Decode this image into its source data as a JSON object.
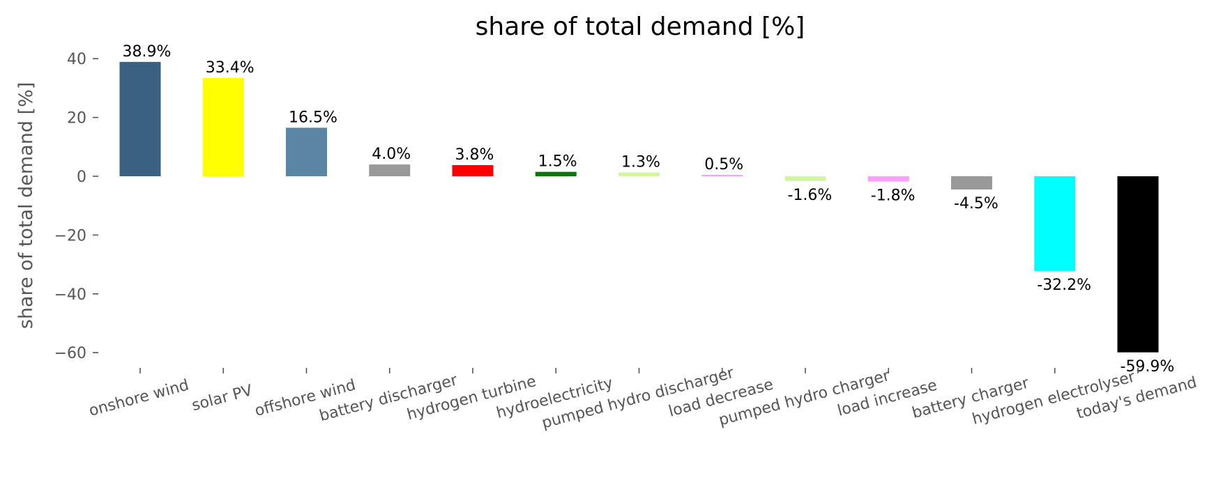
{
  "chart_data": {
    "type": "bar",
    "title": "share of total demand [%]",
    "xlabel": "",
    "ylabel": "share of total demand [%]",
    "ylim": [
      -66,
      46
    ],
    "yticks": [
      40,
      20,
      0,
      -20,
      -40,
      -60
    ],
    "ytick_labels": [
      "40",
      "20",
      "0",
      "−20",
      "−40",
      "−60"
    ],
    "grid": false,
    "categories": [
      "onshore wind",
      "solar PV",
      "offshore wind",
      "battery discharger",
      "hydrogen turbine",
      "hydroelectricity",
      "pumped hydro discharger",
      "load decrease",
      "pumped hydro charger",
      "load increase",
      "battery charger",
      "hydrogen electrolyser",
      "today's demand"
    ],
    "values": [
      38.9,
      33.4,
      16.5,
      4.0,
      3.8,
      1.5,
      1.3,
      0.5,
      -1.6,
      -1.8,
      -4.5,
      -32.2,
      -59.9
    ],
    "data_labels": [
      "38.9%",
      "33.4%",
      "16.5%",
      "4.0%",
      "3.8%",
      "1.5%",
      "1.3%",
      "0.5%",
      "-1.6%",
      "-1.8%",
      "-4.5%",
      "-32.2%",
      "-59.9%"
    ],
    "colors": [
      "#3b6182",
      "#ffff00",
      "#5b84a5",
      "#999999",
      "#ff0000",
      "#08780b",
      "#d4f5a0",
      "#ff9eff",
      "#d4f5a0",
      "#ff9eff",
      "#999999",
      "#00ffff",
      "#000000"
    ]
  }
}
